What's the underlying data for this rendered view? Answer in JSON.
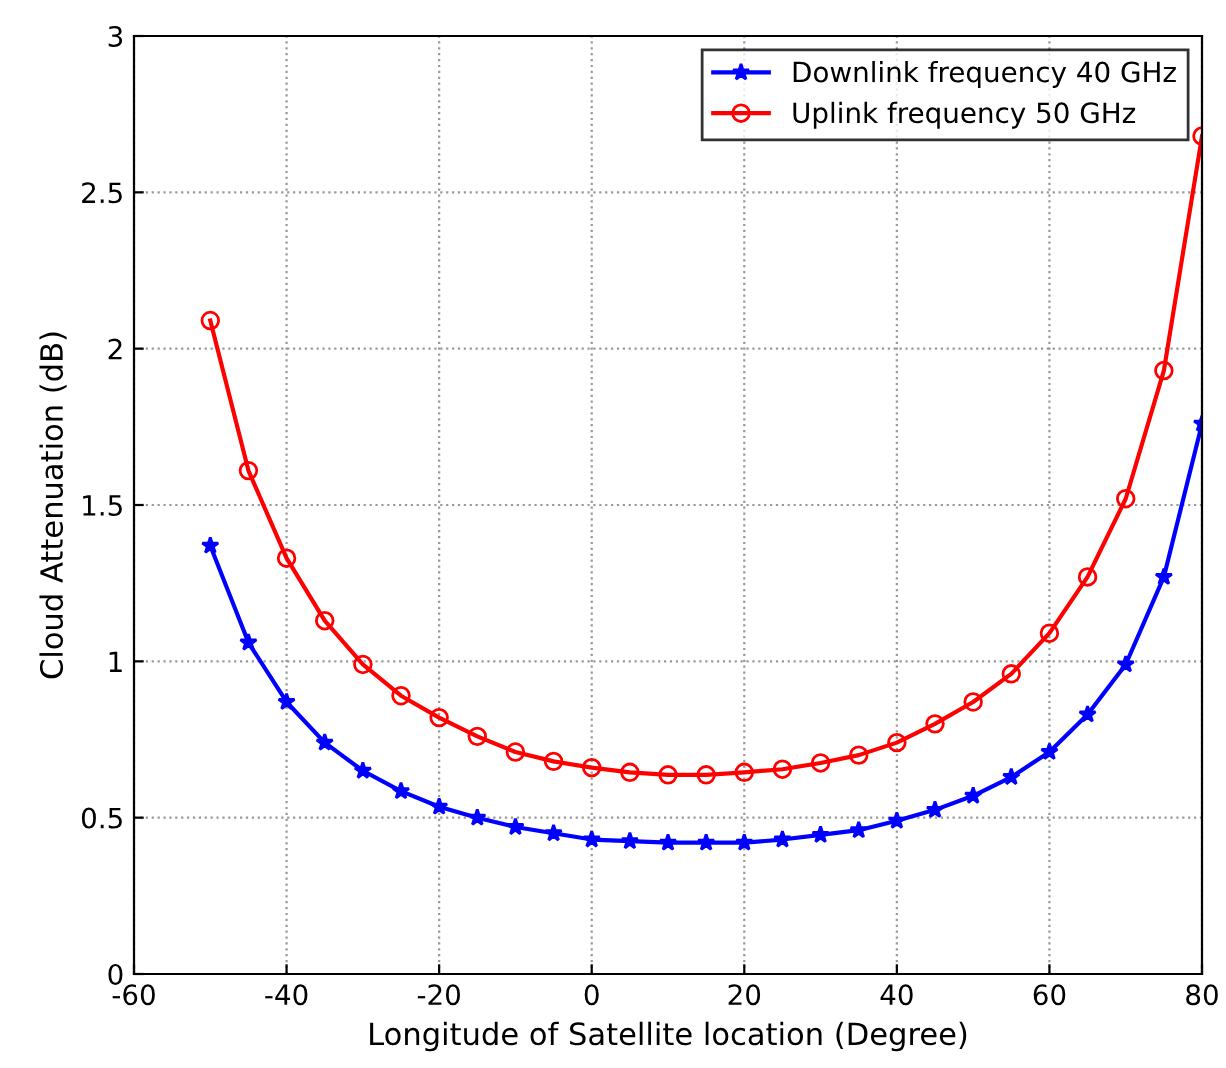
{
  "chart_data": {
    "type": "line",
    "xlabel": "Longitude of Satellite location (Degree)",
    "ylabel": "Cloud Attenuation (dB)",
    "x": [
      -50,
      -45,
      -40,
      -35,
      -30,
      -25,
      -20,
      -15,
      -10,
      -5,
      0,
      5,
      10,
      15,
      20,
      25,
      30,
      35,
      40,
      45,
      50,
      55,
      60,
      65,
      70,
      75,
      80
    ],
    "series": [
      {
        "name": "Downlink frequency 40 GHz",
        "color": "#0000ff",
        "marker": "star",
        "values": [
          1.37,
          1.06,
          0.87,
          0.74,
          0.65,
          0.585,
          0.535,
          0.5,
          0.47,
          0.45,
          0.43,
          0.425,
          0.42,
          0.42,
          0.42,
          0.43,
          0.445,
          0.46,
          0.49,
          0.525,
          0.57,
          0.63,
          0.71,
          0.83,
          0.99,
          1.27,
          1.76
        ]
      },
      {
        "name": "Uplink frequency 50 GHz",
        "color": "#ff0000",
        "marker": "circle",
        "values": [
          2.09,
          1.61,
          1.33,
          1.13,
          0.99,
          0.89,
          0.82,
          0.76,
          0.71,
          0.68,
          0.66,
          0.645,
          0.637,
          0.637,
          0.645,
          0.655,
          0.675,
          0.7,
          0.74,
          0.8,
          0.87,
          0.96,
          1.09,
          1.27,
          1.52,
          1.93,
          2.68
        ]
      }
    ],
    "xlim": [
      -60,
      80
    ],
    "xticks": [
      -60,
      -40,
      -20,
      0,
      20,
      40,
      60,
      80
    ],
    "ylim": [
      0,
      3
    ],
    "yticks": [
      0,
      0.5,
      1,
      1.5,
      2,
      2.5,
      3
    ],
    "grid": true,
    "legend": "top right",
    "line_style": "solid"
  }
}
